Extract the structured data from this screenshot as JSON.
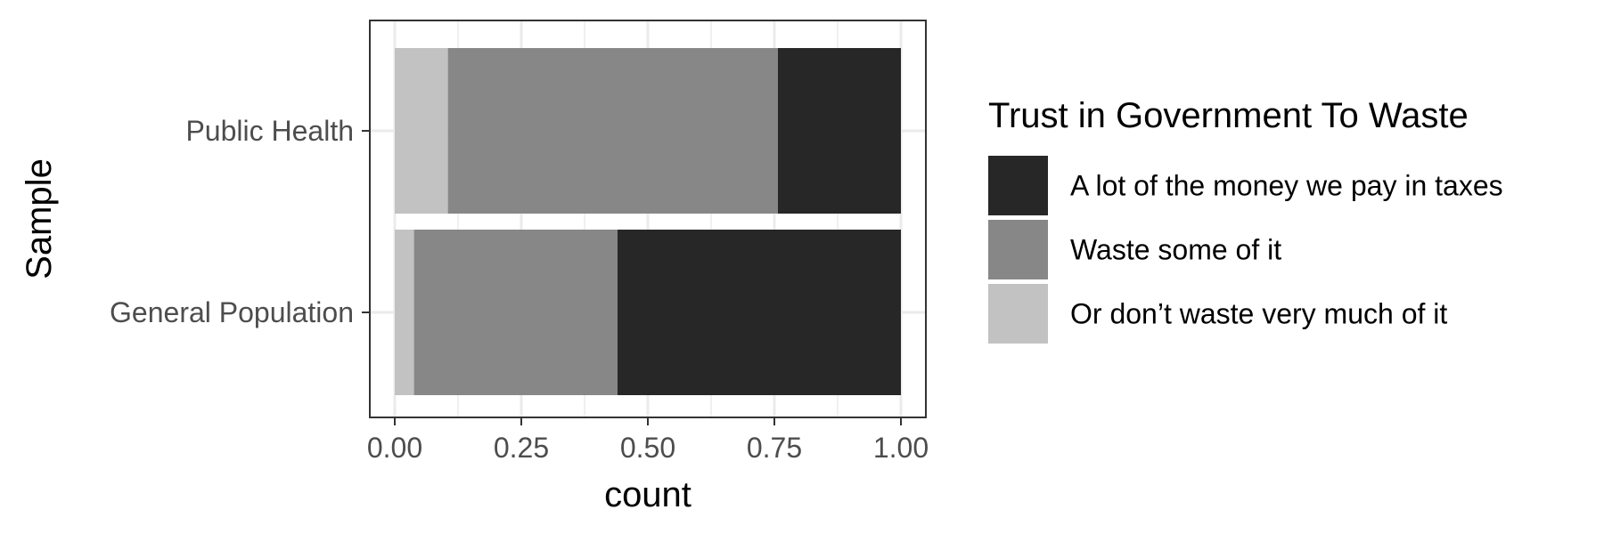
{
  "chart_data": {
    "type": "bar",
    "orientation": "horizontal",
    "stacked": true,
    "categories": [
      "Public Health",
      "General Population"
    ],
    "series": [
      {
        "name": "Or don’t waste very much of it",
        "color": "#c2c2c2",
        "values": [
          0.105,
          0.038
        ]
      },
      {
        "name": "Waste some of it",
        "color": "#878787",
        "values": [
          0.652,
          0.402
        ]
      },
      {
        "name": "A lot of the money we pay in taxes",
        "color": "#272727",
        "values": [
          0.243,
          0.56
        ]
      }
    ],
    "xlabel": "count",
    "ylabel": "Sample",
    "xlim": [
      0,
      1
    ],
    "xticks": [
      0,
      0.25,
      0.5,
      0.75,
      1
    ],
    "xtick_labels": [
      "0.00",
      "0.25",
      "0.50",
      "0.75",
      "1.00"
    ],
    "grid": true,
    "theme": "bw",
    "legend": {
      "title": "Trust in Government To Waste",
      "position": "right",
      "items": [
        {
          "label": "A lot of the money we pay in taxes",
          "color": "#272727"
        },
        {
          "label": "Waste some of it",
          "color": "#878787"
        },
        {
          "label": "Or don’t waste very much of it",
          "color": "#c2c2c2"
        }
      ]
    }
  }
}
